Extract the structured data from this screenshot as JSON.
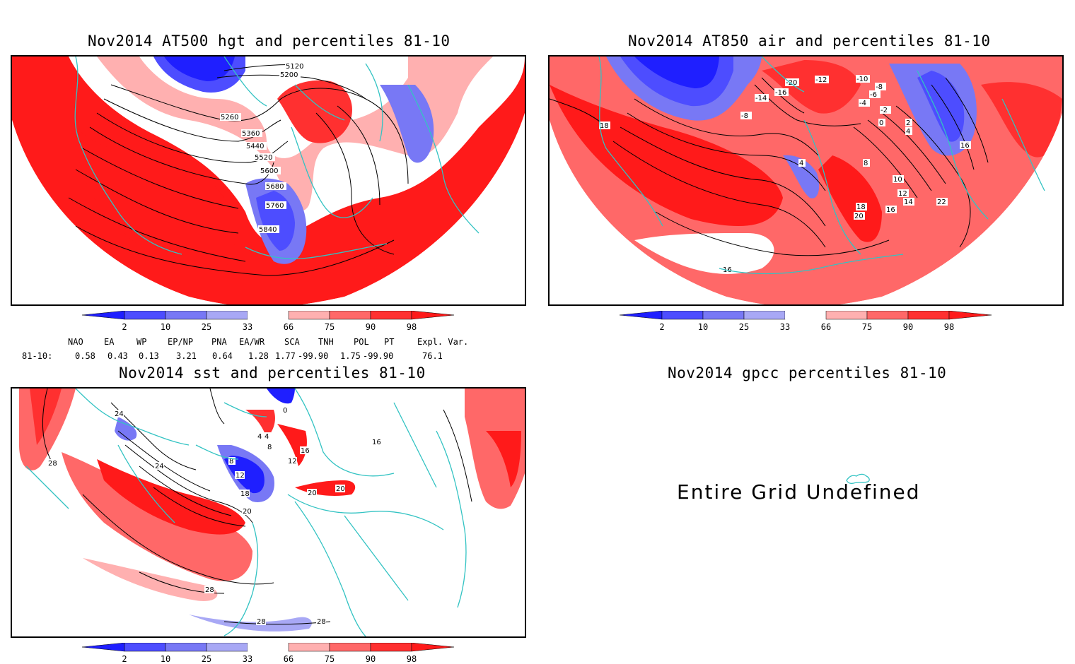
{
  "panels": {
    "hgt500": {
      "title": "Nov2014 AT500 hgt and percentiles 81-10",
      "contour_labels": [
        "5120",
        "5200",
        "5260",
        "5360",
        "5440",
        "5520",
        "5600",
        "5680",
        "5760",
        "5840"
      ]
    },
    "air850": {
      "title": "Nov2014 AT850 air and percentiles 81-10",
      "contour_labels": [
        "-20",
        "-12",
        "-10",
        "-8",
        "-6",
        "-4",
        "-2",
        "0",
        "2",
        "4",
        "-14",
        "-16",
        "-8",
        "4",
        "8",
        "10",
        "12",
        "14",
        "16",
        "18",
        "20",
        "22",
        "16",
        "18",
        "16"
      ]
    },
    "sst": {
      "title": "Nov2014 sst and percentiles 81-10",
      "contour_labels": [
        "24",
        "28",
        "0",
        "4",
        "4",
        "8",
        "8",
        "12",
        "12",
        "16",
        "18",
        "20",
        "20",
        "20",
        "24",
        "28",
        "28",
        "28",
        "16"
      ]
    },
    "gpcc": {
      "title": "Nov2014 gpcc percentiles 81-10",
      "message": "Entire Grid Undefined"
    }
  },
  "colorbar": {
    "labels": [
      "2",
      "10",
      "25",
      "33",
      "66",
      "75",
      "90",
      "98"
    ],
    "colors": [
      "#1f1fff",
      "#4d4dff",
      "#7878f5",
      "#a8a8f5",
      "#ffffff",
      "#ffb0b0",
      "#ff6868",
      "#ff3030",
      "#ff1a1a"
    ]
  },
  "indices": {
    "headers": [
      "NAO",
      "EA",
      "WP",
      "EP/NP",
      "PNA",
      "EA/WR",
      "SCA",
      "TNH",
      "POL",
      "PT",
      "Expl. Var."
    ],
    "row_label": "81-10:",
    "values": [
      "0.58",
      "0.43",
      "0.13",
      "3.21",
      "0.64",
      "1.28",
      "1.77",
      "-99.90",
      "1.75",
      "-99.90",
      "76.1"
    ]
  },
  "colors": {
    "land_outline": "#33c3c3",
    "warm_strong": "#ff1a1a",
    "warm_mid": "#ff6868",
    "cool_strong": "#3030ff",
    "cool_light": "#8f8ff5"
  }
}
